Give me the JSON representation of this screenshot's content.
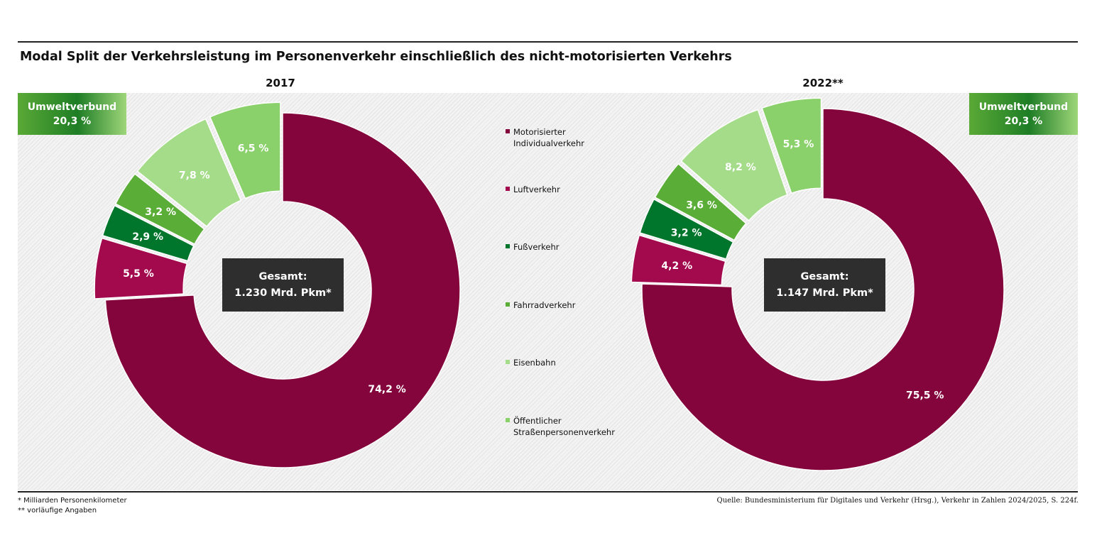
{
  "title": "Modal Split der Verkehrsleistung im Personenverkehr einschließlich des nicht-motorisierten Verkehrs",
  "colors": {
    "miv": "#83053c",
    "luft": "#a3094d",
    "fuss": "#00762c",
    "rad": "#5aad37",
    "bahn": "#a5dc89",
    "oespv": "#8ad16b"
  },
  "legend": [
    {
      "key": "miv",
      "label": "Motorisierter\nIndividualverkehr"
    },
    {
      "key": "luft",
      "label": "Luftverkehr"
    },
    {
      "key": "fuss",
      "label": "Fußverkehr"
    },
    {
      "key": "rad",
      "label": "Fahrradverkehr"
    },
    {
      "key": "bahn",
      "label": "Eisenbahn"
    },
    {
      "key": "oespv",
      "label": "Öffentlicher\nStraßenpersonenverkehr"
    }
  ],
  "chart_data": [
    {
      "type": "pie",
      "title": "2017",
      "total_label_line1": "Gesamt:",
      "total_label_line2": "1.230 Mrd. Pkm*",
      "umweltverbund_label": "Umweltverbund",
      "umweltverbund_value": "20,3 %",
      "slices": [
        {
          "key": "miv",
          "value": 74.2,
          "label": "74,2 %"
        },
        {
          "key": "luft",
          "value": 5.5,
          "label": "5,5 %"
        },
        {
          "key": "fuss",
          "value": 2.9,
          "label": "2,9 %"
        },
        {
          "key": "rad",
          "value": 3.2,
          "label": "3,2 %"
        },
        {
          "key": "bahn",
          "value": 7.8,
          "label": "7,8 %"
        },
        {
          "key": "oespv",
          "value": 6.5,
          "label": "6,5 %"
        }
      ]
    },
    {
      "type": "pie",
      "title": "2022**",
      "total_label_line1": "Gesamt:",
      "total_label_line2": "1.147 Mrd. Pkm*",
      "umweltverbund_label": "Umweltverbund",
      "umweltverbund_value": "20,3 %",
      "slices": [
        {
          "key": "miv",
          "value": 75.5,
          "label": "75,5 %"
        },
        {
          "key": "luft",
          "value": 4.2,
          "label": "4,2 %"
        },
        {
          "key": "fuss",
          "value": 3.2,
          "label": "3,2 %"
        },
        {
          "key": "rad",
          "value": 3.6,
          "label": "3,6 %"
        },
        {
          "key": "bahn",
          "value": 8.2,
          "label": "8,2 %"
        },
        {
          "key": "oespv",
          "value": 5.3,
          "label": "5,3 %"
        }
      ]
    }
  ],
  "footnotes": [
    "* Milliarden Personenkilometer",
    "** vorläufige Angaben"
  ],
  "source": "Quelle: Bundesministerium für Digitales und Verkehr (Hrsg.), Verkehr in Zahlen 2024/2025, S. 224f."
}
